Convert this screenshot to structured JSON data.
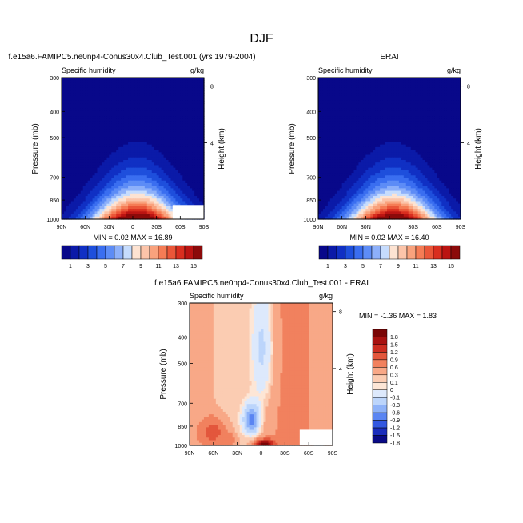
{
  "figure": {
    "title": "DJF"
  },
  "colors": {
    "seq": [
      "#08088a",
      "#0b1aa8",
      "#1030c4",
      "#1e4fdc",
      "#3a6ef0",
      "#5d8cf6",
      "#8db0fa",
      "#c6dcfd",
      "#fde3d2",
      "#fcc4a9",
      "#f9a27d",
      "#f57c55",
      "#ea5638",
      "#d92e1f",
      "#bb1412",
      "#8c0a0a"
    ],
    "diff": [
      "#090a86",
      "#1a2dbc",
      "#3358e0",
      "#5a85f2",
      "#8eb2f8",
      "#bcd5fb",
      "#dde9fc",
      "#fde6d6",
      "#fbccb2",
      "#f8a887",
      "#f1815e",
      "#e3573c",
      "#cc2d20",
      "#a81210",
      "#7a0606"
    ]
  },
  "chart_data": [
    {
      "type": "heatmap",
      "title": "f.e15a6.FAMIPC5.ne0np4-Conus30x4.Club_Test.001 (yrs 1979-2004)",
      "subtitle_left": "Specific humidity",
      "units": "g/kg",
      "ylabel": "Pressure (mb)",
      "ylabel_right": "Height (km)",
      "x_ticks": [
        "90N",
        "60N",
        "30N",
        "0",
        "30S",
        "60S",
        "90S"
      ],
      "y_ticks": [
        "300",
        "400",
        "500",
        "700",
        "850",
        "1000"
      ],
      "y_ticks_right": [
        "8",
        "4"
      ],
      "min_max": "MIN =  0.02  MAX = 16.89",
      "colorbar_labels": [
        "1",
        "3",
        "5",
        "7",
        "9",
        "11",
        "13",
        "15"
      ],
      "peak": 16.89
    },
    {
      "type": "heatmap",
      "title": "ERAI",
      "subtitle_left": "Specific humidity",
      "units": "g/kg",
      "ylabel": "Pressure (mb)",
      "ylabel_right": "Height (km)",
      "x_ticks": [
        "90N",
        "60N",
        "30N",
        "0",
        "30S",
        "60S",
        "90S"
      ],
      "y_ticks": [
        "300",
        "400",
        "500",
        "700",
        "850",
        "1000"
      ],
      "y_ticks_right": [
        "8",
        "4"
      ],
      "min_max": "MIN =  0.02  MAX = 16.40",
      "colorbar_labels": [
        "1",
        "3",
        "5",
        "7",
        "9",
        "11",
        "13",
        "15"
      ],
      "peak": 16.4
    },
    {
      "type": "heatmap",
      "title": "f.e15a6.FAMIPC5.ne0np4-Conus30x4.Club_Test.001 - ERAI",
      "subtitle_left": "Specific humidity",
      "units": "g/kg",
      "ylabel": "Pressure (mb)",
      "ylabel_right": "Height (km)",
      "x_ticks": [
        "90N",
        "60N",
        "30N",
        "0",
        "30S",
        "60S",
        "90S"
      ],
      "y_ticks": [
        "300",
        "400",
        "500",
        "700",
        "850",
        "1000"
      ],
      "y_ticks_right": [
        "8",
        "4"
      ],
      "min_max": "MIN = -1.36  MAX =  1.83",
      "colorbar_labels": [
        "1.8",
        "1.5",
        "1.2",
        "0.9",
        "0.6",
        "0.3",
        "0.1",
        "0",
        "-0.1",
        "-0.3",
        "-0.6",
        "-0.9",
        "-1.2",
        "-1.5",
        "-1.8"
      ],
      "min": -1.36,
      "max": 1.83
    }
  ]
}
